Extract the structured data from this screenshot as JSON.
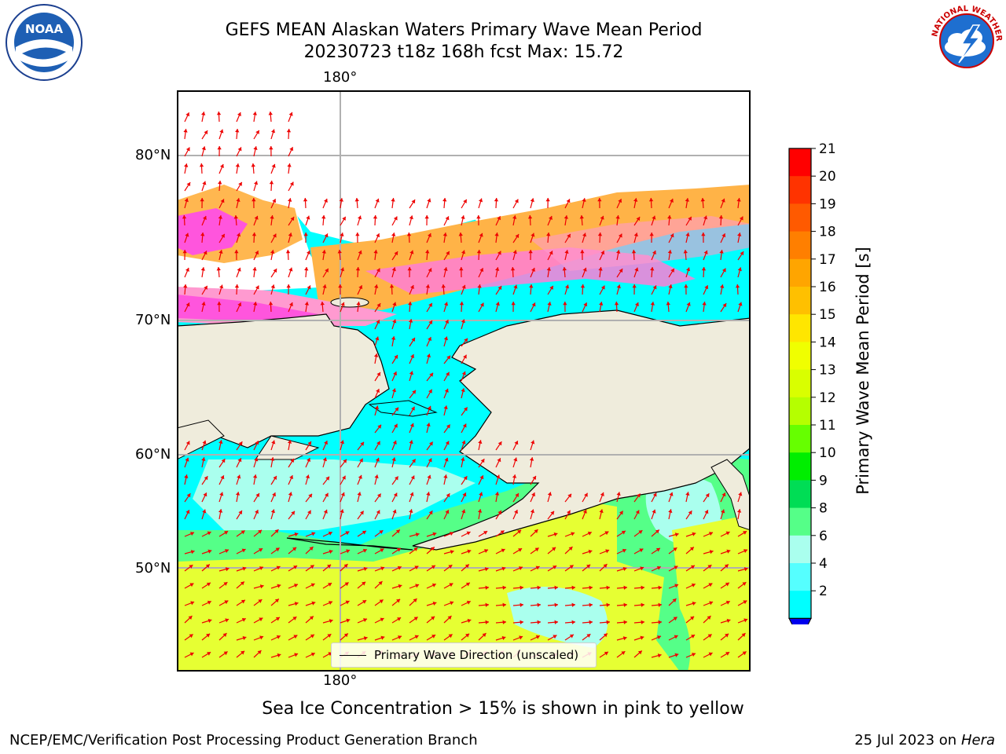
{
  "title_line1": "GEFS MEAN Alaskan Waters Primary Wave Mean Period",
  "title_line2": "20230723 t18z 168h fcst   Max: 15.72",
  "lon_label_top": "180°",
  "lon_label_bottom": "180°",
  "lat_labels": [
    "80°N",
    "70°N",
    "60°N",
    "50°N"
  ],
  "legend_label": "Primary Wave Direction (unscaled)",
  "caption": "Sea Ice Concentration > 15% is shown in pink to yellow",
  "footer_left": "NCEP/EMC/Verification Post Processing Product Generation Branch",
  "footer_date": "25 Jul 2023 on",
  "footer_host": "Hera",
  "colorbar": {
    "label": "Primary Wave Mean Period [s]",
    "ticks": [
      "21",
      "20",
      "19",
      "18",
      "17",
      "16",
      "15",
      "14",
      "13",
      "12",
      "11",
      "10",
      "9",
      "8",
      "6",
      "4",
      "2"
    ],
    "colors": [
      "#ff0000",
      "#ff3300",
      "#ff5a00",
      "#ff7f00",
      "#ffa500",
      "#ffc000",
      "#ffe600",
      "#f0ff00",
      "#d9ff00",
      "#b5ff00",
      "#66ff00",
      "#00ee00",
      "#00dd55",
      "#55ff88",
      "#aaffee",
      "#55ffff",
      "#00ffff",
      "#0077ff"
    ],
    "extend_color": "#0000ee"
  },
  "colors": {
    "land": "#efecdc",
    "ocean_period_low": "#00ffff",
    "ocean_period_mid": "#aaffee",
    "ocean_period_high": "#e6ff33",
    "ice_pink": "#ff55dd",
    "ice_orange": "#ffb347",
    "arrow": "#ee0000",
    "grid": "#b0b0b0"
  },
  "logos": {
    "noaa_text": "NOAA",
    "nws_text": "NATIONAL WEATHER SERVICE"
  }
}
